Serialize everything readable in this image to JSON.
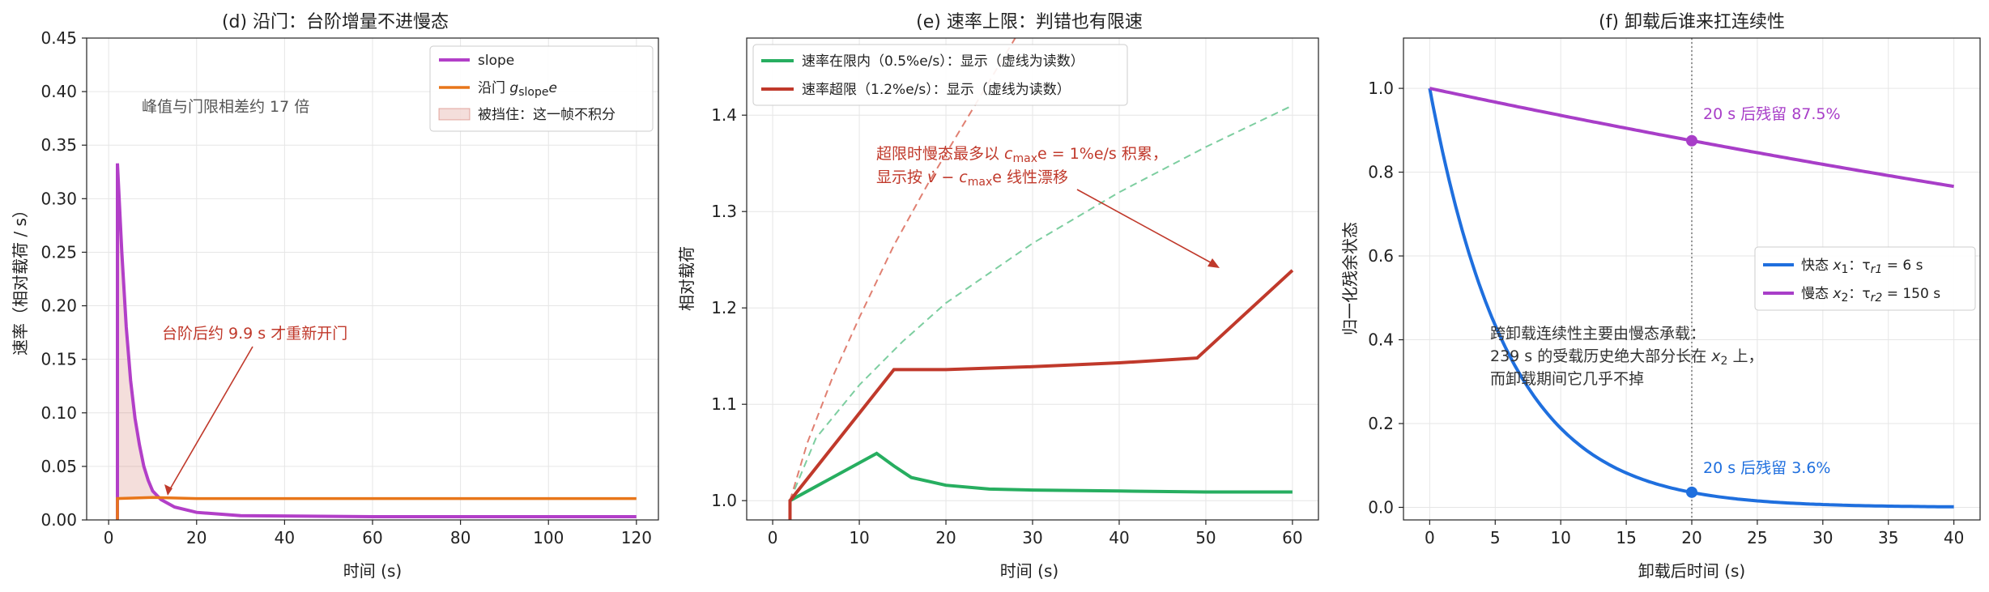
{
  "chart_data": [
    {
      "type": "line",
      "title": "(d) 沿门：台阶增量不进慢态",
      "xlabel": "时间 (s)",
      "ylabel": "速率（相对载荷 / s）",
      "xlim": [
        -5,
        125
      ],
      "ylim": [
        0,
        0.45
      ],
      "xticks": [
        0,
        20,
        40,
        60,
        80,
        100,
        120
      ],
      "yticks": [
        0.0,
        0.05,
        0.1,
        0.15,
        0.2,
        0.25,
        0.3,
        0.35,
        0.4,
        0.45
      ],
      "xtick_labels": [
        "0",
        "20",
        "40",
        "60",
        "80",
        "100",
        "120"
      ],
      "ytick_labels": [
        "0.00",
        "0.05",
        "0.10",
        "0.15",
        "0.20",
        "0.25",
        "0.30",
        "0.35",
        "0.40",
        "0.45"
      ],
      "grid": true,
      "legend_position": "top-right",
      "series": [
        {
          "name": "slope",
          "color": "#b23fc8",
          "x": [
            2,
            2,
            3,
            4,
            5,
            6,
            7,
            8,
            9,
            10,
            11.9,
            15,
            20,
            30,
            60,
            120
          ],
          "y": [
            0,
            0.333,
            0.25,
            0.18,
            0.13,
            0.095,
            0.07,
            0.05,
            0.037,
            0.027,
            0.019,
            0.012,
            0.007,
            0.004,
            0.003,
            0.003
          ]
        },
        {
          "name_prefix": "沿门 ",
          "name_math": "g",
          "name_sub": "slope",
          "name_suffix": "e",
          "color": "#e8761a",
          "x": [
            2,
            2,
            10,
            20,
            60,
            120
          ],
          "y": [
            0,
            0.02,
            0.021,
            0.02,
            0.02,
            0.02
          ]
        },
        {
          "name": "被挡住：这一帧不积分",
          "color": "#c0392b",
          "kind": "shaded-area"
        }
      ],
      "annotations": [
        {
          "text": "峰值与门限相差约 17 倍",
          "x": 6,
          "y": 0.38,
          "color": "#555555"
        },
        {
          "text": "台阶后约 9.9 s 才重新开门",
          "x": 11,
          "y": 0.165,
          "color": "#c0392b",
          "arrow_to": [
            11.9,
            0.021
          ]
        }
      ]
    },
    {
      "type": "line",
      "title": "(e) 速率上限：判错也有限速",
      "xlabel": "时间 (s)",
      "ylabel": "相对载荷",
      "xlim": [
        -3,
        63
      ],
      "ylim": [
        0.98,
        1.48
      ],
      "xticks": [
        0,
        10,
        20,
        30,
        40,
        50,
        60
      ],
      "yticks": [
        1.0,
        1.1,
        1.2,
        1.3,
        1.4
      ],
      "xtick_labels": [
        "0",
        "10",
        "20",
        "30",
        "40",
        "50",
        "60"
      ],
      "ytick_labels": [
        "1.0",
        "1.1",
        "1.2",
        "1.3",
        "1.4"
      ],
      "grid": true,
      "legend_position": "top-left",
      "series": [
        {
          "name": "速率在限内（0.5%e/s）：显示（虚线为读数）",
          "color": "#27ae60",
          "style": "solid",
          "x": [
            2,
            2,
            12,
            14,
            16,
            20,
            25,
            30,
            40,
            50,
            60
          ],
          "y": [
            0.98,
            1.0,
            1.049,
            1.036,
            1.024,
            1.016,
            1.012,
            1.011,
            1.01,
            1.009,
            1.009
          ]
        },
        {
          "name": "速率超限（1.2%e/s）：显示（虚线为读数）",
          "color": "#c0392b",
          "style": "solid",
          "x": [
            2,
            2,
            14,
            20,
            30,
            40,
            49,
            60
          ],
          "y": [
            0.98,
            1.0,
            1.136,
            1.136,
            1.139,
            1.143,
            1.148,
            1.239
          ]
        },
        {
          "name": "",
          "color": "#7dcea0",
          "style": "dashed",
          "x": [
            2,
            5,
            10,
            15,
            20,
            30,
            40,
            50,
            60
          ],
          "y": [
            1.0,
            1.065,
            1.12,
            1.165,
            1.205,
            1.267,
            1.32,
            1.367,
            1.41
          ]
        },
        {
          "name": "",
          "color": "#e08072",
          "style": "dashed",
          "x": [
            2,
            4,
            7,
            10,
            14,
            18,
            22,
            26,
            28
          ],
          "y": [
            1.0,
            1.06,
            1.13,
            1.19,
            1.265,
            1.33,
            1.39,
            1.45,
            1.48
          ]
        }
      ],
      "annotations": [
        {
          "line1_prefix": "超限时慢态最多以 ",
          "line1_math": "c",
          "line1_sub": "max",
          "line1_suffix": "e = 1%e/s 积累，",
          "line2_prefix": "显示按 ",
          "line2_math": "v̇ − c",
          "line2_sub": "max",
          "line2_suffix": "e 线性漂移",
          "x": 12,
          "y": 1.35,
          "color": "#c0392b",
          "arrow_to": [
            52,
            1.24
          ]
        }
      ]
    },
    {
      "type": "line",
      "title": "(f) 卸载后谁来扛连续性",
      "xlabel": "卸载后时间 (s)",
      "ylabel": "归一化残余状态",
      "xlim": [
        -2,
        42
      ],
      "ylim": [
        -0.03,
        1.12
      ],
      "xticks": [
        0,
        5,
        10,
        15,
        20,
        25,
        30,
        35,
        40
      ],
      "yticks": [
        0.0,
        0.2,
        0.4,
        0.6,
        0.8,
        1.0
      ],
      "xtick_labels": [
        "0",
        "5",
        "10",
        "15",
        "20",
        "25",
        "30",
        "35",
        "40"
      ],
      "ytick_labels": [
        "0.0",
        "0.2",
        "0.4",
        "0.6",
        "0.8",
        "1.0"
      ],
      "grid": true,
      "legend_position": "center-right",
      "vline_x": 20,
      "series": [
        {
          "name_prefix": "快态 ",
          "name_math": "x",
          "name_sub": "1",
          "name_suffix": "：τ",
          "name_sub2": "r1",
          "name_tail": " = 6 s",
          "color": "#1f6fde",
          "tau": 6,
          "x": [
            0,
            2.5,
            5,
            7.5,
            10,
            12.5,
            15,
            17.5,
            20,
            22.5,
            25,
            27.5,
            30,
            32.5,
            35,
            37.5,
            40
          ],
          "y": [
            1.0,
            0.659,
            0.435,
            0.287,
            0.189,
            0.125,
            0.082,
            0.054,
            0.036,
            0.024,
            0.016,
            0.01,
            0.007,
            0.004,
            0.003,
            0.002,
            0.001
          ]
        },
        {
          "name_prefix": "慢态 ",
          "name_math": "x",
          "name_sub": "2",
          "name_suffix": "：τ",
          "name_sub2": "r2",
          "name_tail": " = 150 s",
          "color": "#a83ec8",
          "tau": 150,
          "x": [
            0,
            10,
            20,
            30,
            40
          ],
          "y": [
            1.0,
            0.936,
            0.875,
            0.819,
            0.766
          ]
        }
      ],
      "markers": [
        {
          "x": 20,
          "y": 0.875,
          "color": "#a83ec8",
          "label": "20 s 后残留 87.5%"
        },
        {
          "x": 20,
          "y": 0.036,
          "color": "#1f6fde",
          "label": "20 s 后残留 3.6%"
        }
      ],
      "annotations": [
        {
          "line1": "跨卸载连续性主要由慢态承载：",
          "line2_prefix": "239 s 的受载历史绝大部分长在 ",
          "line2_math": "x",
          "line2_sub": "2",
          "line2_suffix": " 上，",
          "line3": "而卸载期间它几乎不掉",
          "x": 4.5,
          "y": 0.43,
          "color": "#333333"
        }
      ]
    }
  ]
}
